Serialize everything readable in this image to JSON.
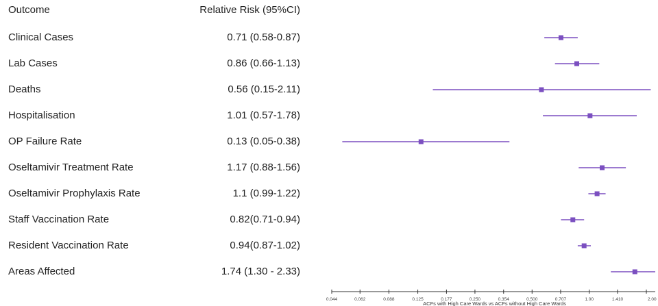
{
  "header": {
    "outcome_label": "Outcome",
    "rr_label": "Relative Risk (95%CI)"
  },
  "chart_data": {
    "type": "forest",
    "scale": "log",
    "xlim": [
      0.044,
      2.0
    ],
    "xlabel": "ACFs with High Care Wards vs ACFs without High Care Wards",
    "x_ticks": [
      "0.044",
      "0.062",
      "0.088",
      "0.125",
      "0.177",
      "0.250",
      "0.354",
      "0.500",
      "0.707",
      "1.00",
      "1.410",
      "2.00"
    ],
    "x_tick_values": [
      0.044,
      0.062,
      0.088,
      0.125,
      0.177,
      0.25,
      0.354,
      0.5,
      0.707,
      1.0,
      1.41,
      2.0
    ],
    "mark_color": "#7b4fc0",
    "rows": [
      {
        "label": "Clinical Cases",
        "rr_text": "0.71 (0.58-0.87)",
        "rr": 0.71,
        "lo": 0.58,
        "hi": 0.87
      },
      {
        "label": "Lab Cases",
        "rr_text": "0.86 (0.66-1.13)",
        "rr": 0.86,
        "lo": 0.66,
        "hi": 1.13
      },
      {
        "label": "Deaths",
        "rr_text": "0.56 (0.15-2.11)",
        "rr": 0.56,
        "lo": 0.15,
        "hi": 2.11
      },
      {
        "label": "Hospitalisation",
        "rr_text": "1.01 (0.57-1.78)",
        "rr": 1.01,
        "lo": 0.57,
        "hi": 1.78
      },
      {
        "label": "OP Failure Rate",
        "rr_text": "0.13 (0.05-0.38)",
        "rr": 0.13,
        "lo": 0.05,
        "hi": 0.38
      },
      {
        "label": "Oseltamivir Treatment Rate",
        "rr_text": "1.17 (0.88-1.56)",
        "rr": 1.17,
        "lo": 0.88,
        "hi": 1.56
      },
      {
        "label": "Oseltamivir Prophylaxis Rate",
        "rr_text": "1.1 (0.99-1.22)",
        "rr": 1.1,
        "lo": 0.99,
        "hi": 1.22
      },
      {
        "label": "Staff Vaccination Rate",
        "rr_text": "0.82(0.71-0.94)",
        "rr": 0.82,
        "lo": 0.71,
        "hi": 0.94
      },
      {
        "label": "Resident Vaccination Rate",
        "rr_text": "0.94(0.87-1.02)",
        "rr": 0.94,
        "lo": 0.87,
        "hi": 1.02
      },
      {
        "label": "Areas Affected",
        "rr_text": "1.74 (1.30 - 2.33)",
        "rr": 1.74,
        "lo": 1.3,
        "hi": 2.33
      }
    ]
  }
}
